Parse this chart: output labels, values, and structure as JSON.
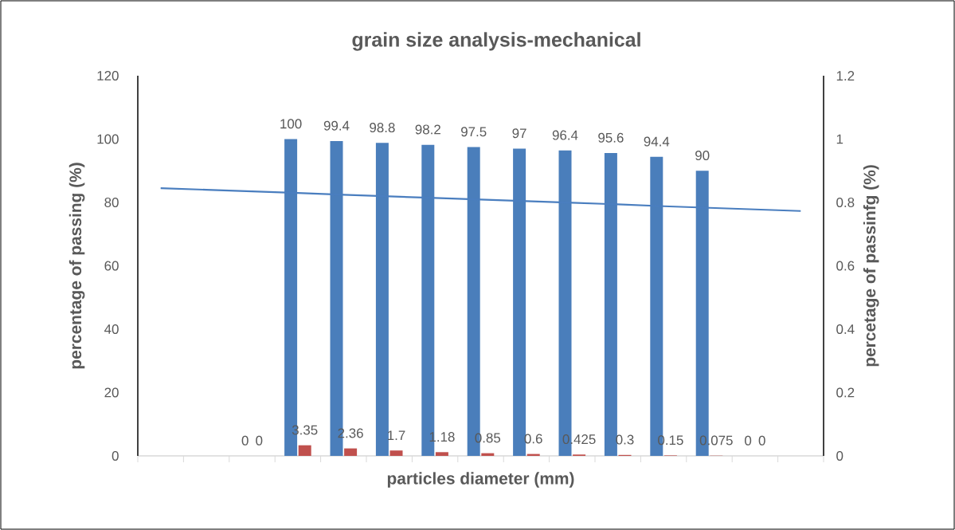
{
  "chart_data": {
    "type": "bar",
    "title": "grain size analysis-mechanical",
    "xlabel": "particles diameter (mm)",
    "ylabel": "percentage of passing (%)",
    "y2label": "percetage of passinfg (%)",
    "categories": [
      null,
      null,
      null,
      null,
      null,
      null,
      null,
      null,
      null,
      null,
      null,
      null,
      null,
      null,
      null
    ],
    "series": [
      {
        "color": "#4a7ebb",
        "values": [
          null,
          null,
          0,
          100,
          99.4,
          98.8,
          98.2,
          97.5,
          97,
          96.4,
          95.6,
          94.4,
          90,
          0,
          null
        ],
        "value_labels": [
          null,
          null,
          "0",
          "100",
          "99.4",
          "98.8",
          "98.2",
          "97.5",
          "97",
          "96.4",
          "95.6",
          "94.4",
          "90",
          "0",
          null
        ]
      },
      {
        "color": "#c0504d",
        "values": [
          null,
          null,
          0,
          3.35,
          2.36,
          1.7,
          1.18,
          0.85,
          0.6,
          0.425,
          0.3,
          0.15,
          0.075,
          0,
          null
        ],
        "value_labels": [
          null,
          null,
          "0",
          "3.35",
          "2.36",
          "1.7",
          "1.18",
          "0.85",
          "0.6",
          "0.425",
          "0.3",
          "0.15",
          "0.075",
          "0",
          null
        ]
      },
      {
        "type": "line",
        "color": "#4a7ebf",
        "values": [
          84.5,
          84.0,
          83.5,
          83.0,
          82.4,
          81.9,
          81.4,
          80.9,
          80.4,
          79.9,
          79.4,
          78.8,
          78.3,
          77.8,
          77.3
        ]
      }
    ],
    "ylim": [
      0,
      120
    ],
    "yticks": [
      0,
      20,
      40,
      60,
      80,
      100,
      120
    ],
    "y2lim": [
      0,
      1.2
    ],
    "y2ticks": [
      0,
      0.2,
      0.4,
      0.6,
      0.8,
      1,
      1.2
    ]
  }
}
